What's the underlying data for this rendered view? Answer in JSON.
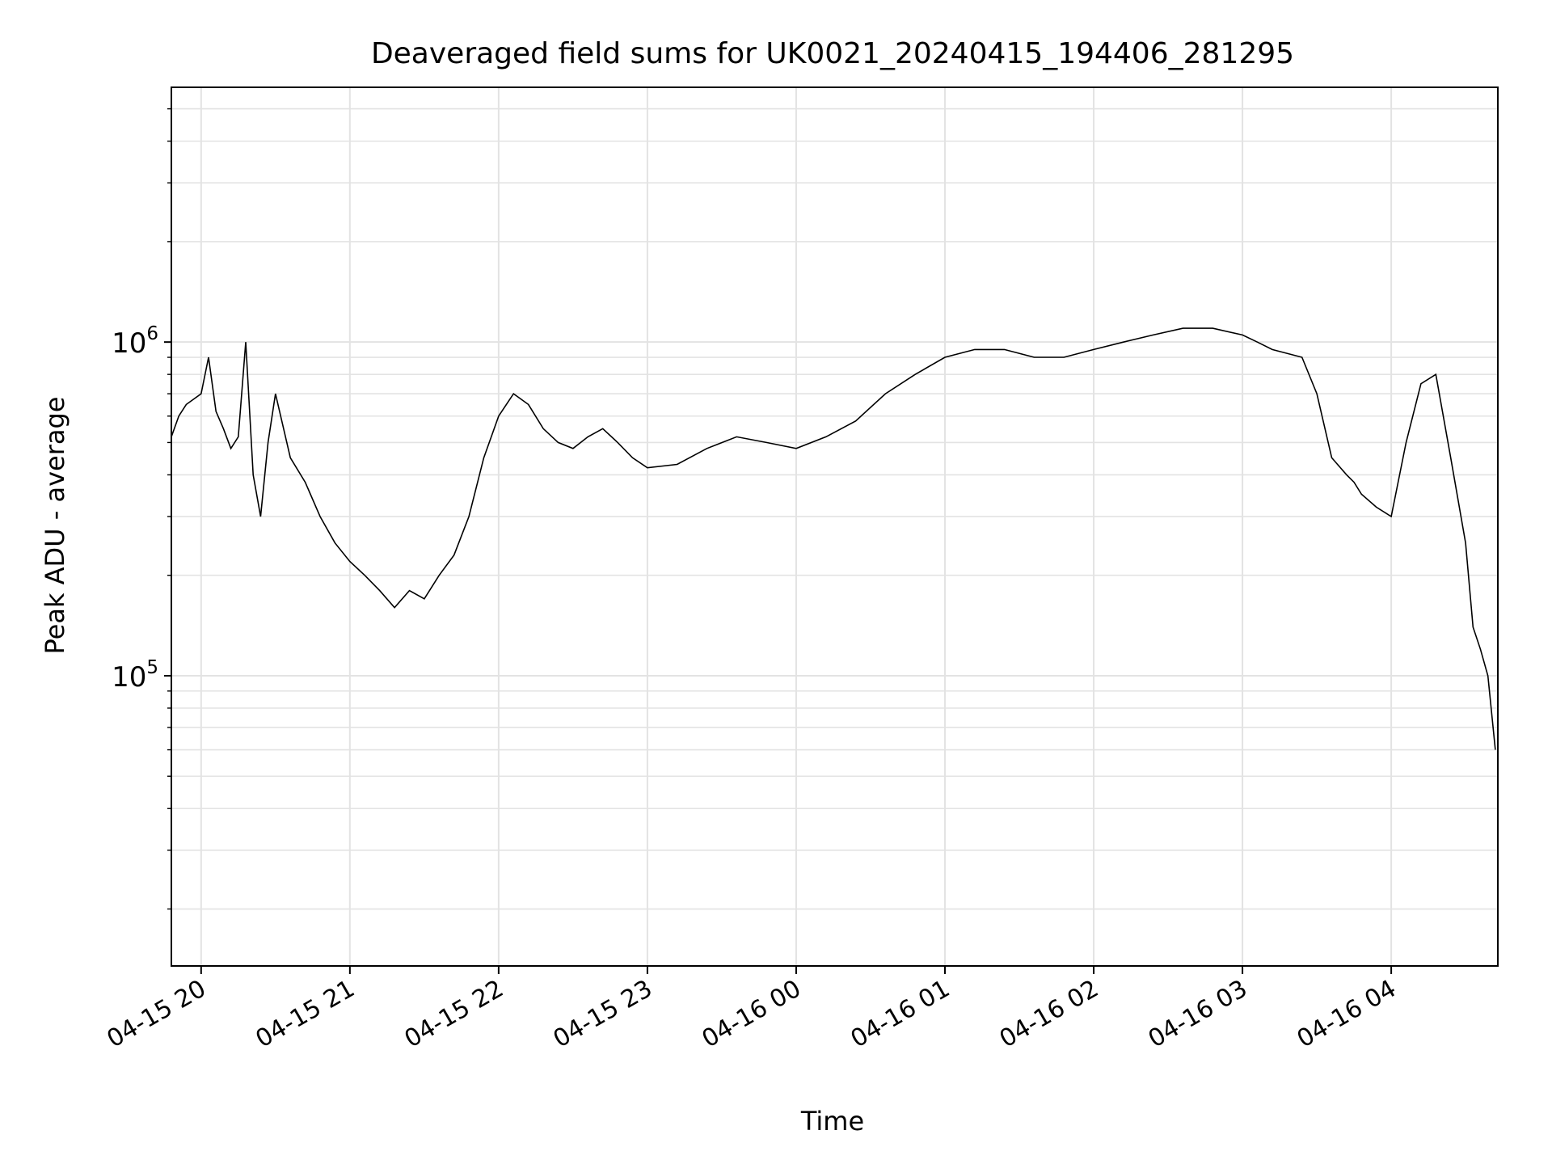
{
  "chart_data": {
    "type": "line",
    "title": "Deaveraged field sums for UK0021_20240415_194406_281295",
    "xlabel": "Time",
    "ylabel": "Peak ADU - average",
    "y_scale": "log",
    "grid": true,
    "grid_minor": true,
    "x_range": [
      "2024-04-15 19:48",
      "2024-04-16 04:43"
    ],
    "ylim": [
      13500,
      5800000
    ],
    "x_tick_labels": [
      "04-15 20",
      "04-15 21",
      "04-15 22",
      "04-15 23",
      "04-16 00",
      "04-16 01",
      "04-16 02",
      "04-16 03",
      "04-16 04"
    ],
    "y_tick_labels": [
      {
        "base": "10",
        "exp": "5",
        "value": 100000
      },
      {
        "base": "10",
        "exp": "6",
        "value": 1000000
      }
    ],
    "line_color": "#000000",
    "series": [
      {
        "x_hours_since_2024-04-15_19:00": [
          0.8,
          0.85,
          0.9,
          1.0,
          1.05,
          1.1,
          1.15,
          1.2,
          1.25,
          1.3,
          1.35,
          1.4,
          1.45,
          1.5,
          1.6,
          1.7,
          1.8,
          1.9,
          2.0,
          2.1,
          2.2,
          2.3,
          2.4,
          2.5,
          2.6,
          2.7,
          2.8,
          2.9,
          3.0,
          3.1,
          3.2,
          3.3,
          3.4,
          3.5,
          3.6,
          3.7,
          3.8,
          3.9,
          4.0,
          4.2,
          4.4,
          4.6,
          4.8,
          5.0,
          5.2,
          5.4,
          5.6,
          5.8,
          6.0,
          6.2,
          6.4,
          6.6,
          6.8,
          7.0,
          7.2,
          7.4,
          7.6,
          7.8,
          8.0,
          8.1,
          8.2,
          8.4,
          8.5,
          8.6,
          8.7,
          8.75,
          8.8,
          8.9,
          9.0,
          9.1,
          9.2,
          9.3,
          9.4,
          9.5,
          9.55,
          9.6,
          9.65,
          9.7
        ],
        "values": [
          520000,
          600000,
          650000,
          700000,
          900000,
          620000,
          550000,
          480000,
          520000,
          1000000,
          400000,
          300000,
          500000,
          700000,
          450000,
          380000,
          300000,
          250000,
          220000,
          200000,
          180000,
          160000,
          180000,
          170000,
          200000,
          230000,
          300000,
          450000,
          600000,
          700000,
          650000,
          550000,
          500000,
          480000,
          520000,
          550000,
          500000,
          450000,
          420000,
          430000,
          480000,
          520000,
          500000,
          480000,
          520000,
          580000,
          700000,
          800000,
          900000,
          950000,
          950000,
          900000,
          900000,
          950000,
          1000000,
          1050000,
          1100000,
          1100000,
          1050000,
          1000000,
          950000,
          900000,
          700000,
          450000,
          400000,
          380000,
          350000,
          320000,
          300000,
          500000,
          750000,
          800000,
          450000,
          250000,
          140000,
          120000,
          100000,
          60000
        ]
      }
    ]
  }
}
